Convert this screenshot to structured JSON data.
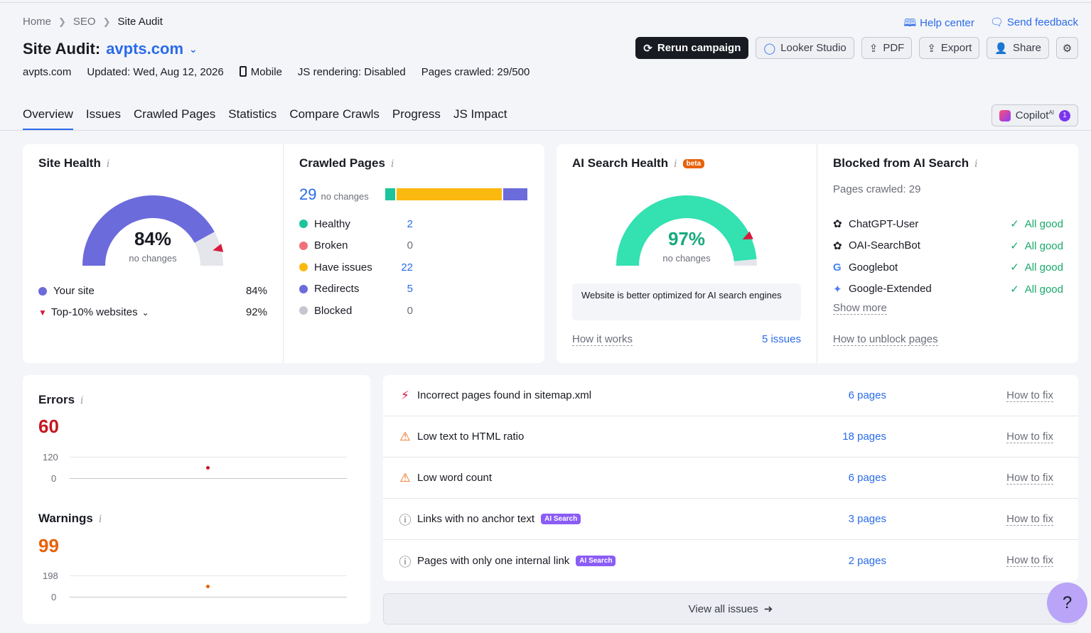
{
  "breadcrumbs": [
    "Home",
    "SEO",
    "Site Audit"
  ],
  "header": {
    "title_prefix": "Site Audit:",
    "domain": "avpts.com",
    "meta": {
      "domain": "avpts.com",
      "updated": "Updated: Wed, Aug 12, 2026",
      "device": "Mobile",
      "js_rendering": "JS rendering: Disabled",
      "pages_crawled": "Pages crawled: 29/500"
    },
    "help_center": "Help center",
    "send_feedback": "Send feedback",
    "buttons": {
      "rerun": "Rerun campaign",
      "looker": "Looker Studio",
      "pdf": "PDF",
      "export": "Export",
      "share": "Share"
    }
  },
  "tabs": [
    "Overview",
    "Issues",
    "Crawled Pages",
    "Statistics",
    "Compare Crawls",
    "Progress",
    "JS Impact"
  ],
  "copilot": {
    "label": "Copilot",
    "sup": "AI",
    "badge": "1"
  },
  "site_health": {
    "title": "Site Health",
    "value": "84%",
    "fraction": 0.84,
    "benchmark_fraction": 0.92,
    "change": "no changes",
    "legend": [
      {
        "label": "Your site",
        "value": "84%",
        "color": "#6b6bdc"
      },
      {
        "label": "Top-10% websites",
        "value": "92%",
        "color": "#d81b3c"
      }
    ]
  },
  "crawled_pages": {
    "title": "Crawled Pages",
    "total": "29",
    "change": "no changes",
    "items": [
      {
        "label": "Healthy",
        "value": "2",
        "count": 2,
        "color": "#1dc49a",
        "link": true
      },
      {
        "label": "Broken",
        "value": "0",
        "count": 0,
        "color": "#f2707b",
        "link": false
      },
      {
        "label": "Have issues",
        "value": "22",
        "count": 22,
        "color": "#fbb80e",
        "link": true
      },
      {
        "label": "Redirects",
        "value": "5",
        "count": 5,
        "color": "#6b6bdc",
        "link": true
      },
      {
        "label": "Blocked",
        "value": "0",
        "count": 0,
        "color": "#c4c7cf",
        "link": false
      }
    ]
  },
  "ai_health": {
    "title": "AI Search Health",
    "beta": "beta",
    "value": "97%",
    "fraction": 0.97,
    "benchmark_fraction": 0.86,
    "change": "no changes",
    "note": "Website is better optimized for AI search engines",
    "how_it_works": "How it works",
    "issues_link": "5 issues"
  },
  "blocked": {
    "title": "Blocked from AI Search",
    "pages_crawled": "Pages crawled: 29",
    "bots": [
      {
        "name": "ChatGPT-User",
        "status": "All good",
        "icon": "openai-icon"
      },
      {
        "name": "OAI-SearchBot",
        "status": "All good",
        "icon": "openai-icon"
      },
      {
        "name": "Googlebot",
        "status": "All good",
        "icon": "google-icon"
      },
      {
        "name": "Google-Extended",
        "status": "All good",
        "icon": "gemini-icon"
      }
    ],
    "show_more": "Show more",
    "unblock_link": "How to unblock pages"
  },
  "errors": {
    "title": "Errors",
    "value": "60",
    "axis_top": "120",
    "axis_bottom": "0",
    "color": "#c8171f"
  },
  "warnings": {
    "title": "Warnings",
    "value": "99",
    "axis_top": "198",
    "axis_bottom": "0",
    "color": "#e8620b"
  },
  "issues": [
    {
      "icon": "error-icon",
      "text": "Incorrect pages found in sitemap.xml",
      "tag": "",
      "count": "6 pages",
      "fix": "How to fix"
    },
    {
      "icon": "warning-icon",
      "text": "Low text to HTML ratio",
      "tag": "",
      "count": "18 pages",
      "fix": "How to fix"
    },
    {
      "icon": "warning-icon",
      "text": "Low word count",
      "tag": "",
      "count": "6 pages",
      "fix": "How to fix"
    },
    {
      "icon": "notice-icon",
      "text": "Links with no anchor text",
      "tag": "AI Search",
      "count": "3 pages",
      "fix": "How to fix"
    },
    {
      "icon": "notice-icon",
      "text": "Pages with only one internal link",
      "tag": "AI Search",
      "count": "2 pages",
      "fix": "How to fix"
    }
  ],
  "view_all": "View all issues",
  "help_fab": "?"
}
